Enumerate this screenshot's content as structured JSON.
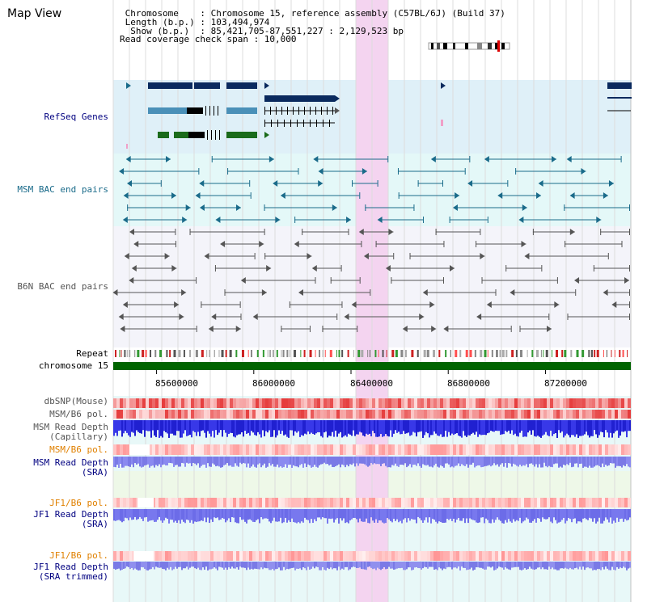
{
  "app_title": "Map View",
  "header": {
    "lines": [
      " Chromosome    : Chromosome 15, reference assembly (C57BL/6J) (Build 37)",
      " Length (b.p.) : 103,494,974",
      "  Show (b.p.)  : 85,421,705-87,551,227 : 2,129,523 bp",
      "Read coverage check span : 10,000"
    ]
  },
  "colors": {
    "refseq_bg": "#dff0f8",
    "msm_bac_bg": "#e4f8f8",
    "b6n_bac_bg": "#f4f4fa",
    "highlight": "#f4d4f0",
    "chromosome_bar": "#006400",
    "refseq_label": "#000080",
    "msm_label": "#1a6b8a",
    "b6n_label": "#555555",
    "pol_orange": "#e08000",
    "depth_blue": "#000080"
  },
  "tracks": {
    "refseq": "RefSeq Genes",
    "msm_bac": "MSM BAC end pairs",
    "b6n_bac": "B6N BAC end pairs",
    "repeat": "Repeat",
    "chromosome": "chromosome 15",
    "dbsnp": "dbSNP(Mouse)",
    "msm_b6_pol_1": "MSM/B6 pol.",
    "msm_depth_cap_1": "MSM Read Depth",
    "msm_depth_cap_2": "(Capillary)",
    "msm_b6_pol_2": "MSM/B6 pol.",
    "msm_depth_sra_1": "MSM Read Depth",
    "msm_depth_sra_2": "(SRA)",
    "jf1_b6_pol_1": "JF1/B6 pol.",
    "jf1_depth_sra_1": "JF1 Read Depth",
    "jf1_depth_sra_2": "(SRA)",
    "jf1_b6_pol_2": "JF1/B6 pol.",
    "jf1_depth_trim_1": "JF1 Read Depth",
    "jf1_depth_trim_2": "(SRA trimmed)"
  },
  "axis": {
    "ticks": [
      "85600000",
      "86000000",
      "86400000",
      "86800000",
      "87200000"
    ],
    "tick_positions_bp": [
      85600000,
      86000000,
      86400000,
      86800000,
      87200000
    ],
    "range_bp": [
      85421705,
      87551227
    ]
  }
}
